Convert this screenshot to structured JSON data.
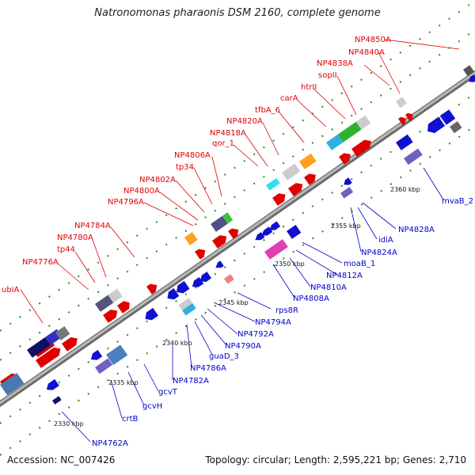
{
  "title": "Natronomonas pharaonis DSM 2160, complete genome",
  "accession": "Accession: NC_007426",
  "topology": "Topology: circular; Length: 2,595,221 bp; Genes: 2,710",
  "colors": {
    "forward_label": "#e00000",
    "reverse_label": "#0000cc",
    "backbone": "#888888",
    "ticks": "#2a8a2a"
  },
  "scale_marks": [
    "2330 kbp",
    "2335 kbp",
    "2340 kbp",
    "2345 kbp",
    "2350 kbp",
    "2355 kbp",
    "2360 kbp"
  ],
  "forward_labels": [
    "NP4850A",
    "NP4840A",
    "NP4838A",
    "sopII",
    "htrII",
    "carA",
    "tfbA_6",
    "NP4820A",
    "NP4818A",
    "qor_1",
    "NP4806A",
    "tp34",
    "NP4802A",
    "NP4800A",
    "NP4796A",
    "NP4784A",
    "NP4780A",
    "tp44",
    "NP4776A",
    "ubiA"
  ],
  "reverse_labels": [
    "mvaB_2",
    "NP4828A",
    "idiA",
    "NP4824A",
    "moaB_1",
    "NP4812A",
    "NP4810A",
    "NP4808A",
    "rps8R",
    "NP4794A",
    "NP4792A",
    "NP4790A",
    "guaD_3",
    "NP4786A",
    "NP4782A",
    "gcvT",
    "gcvH",
    "crtB",
    "NP4762A"
  ]
}
